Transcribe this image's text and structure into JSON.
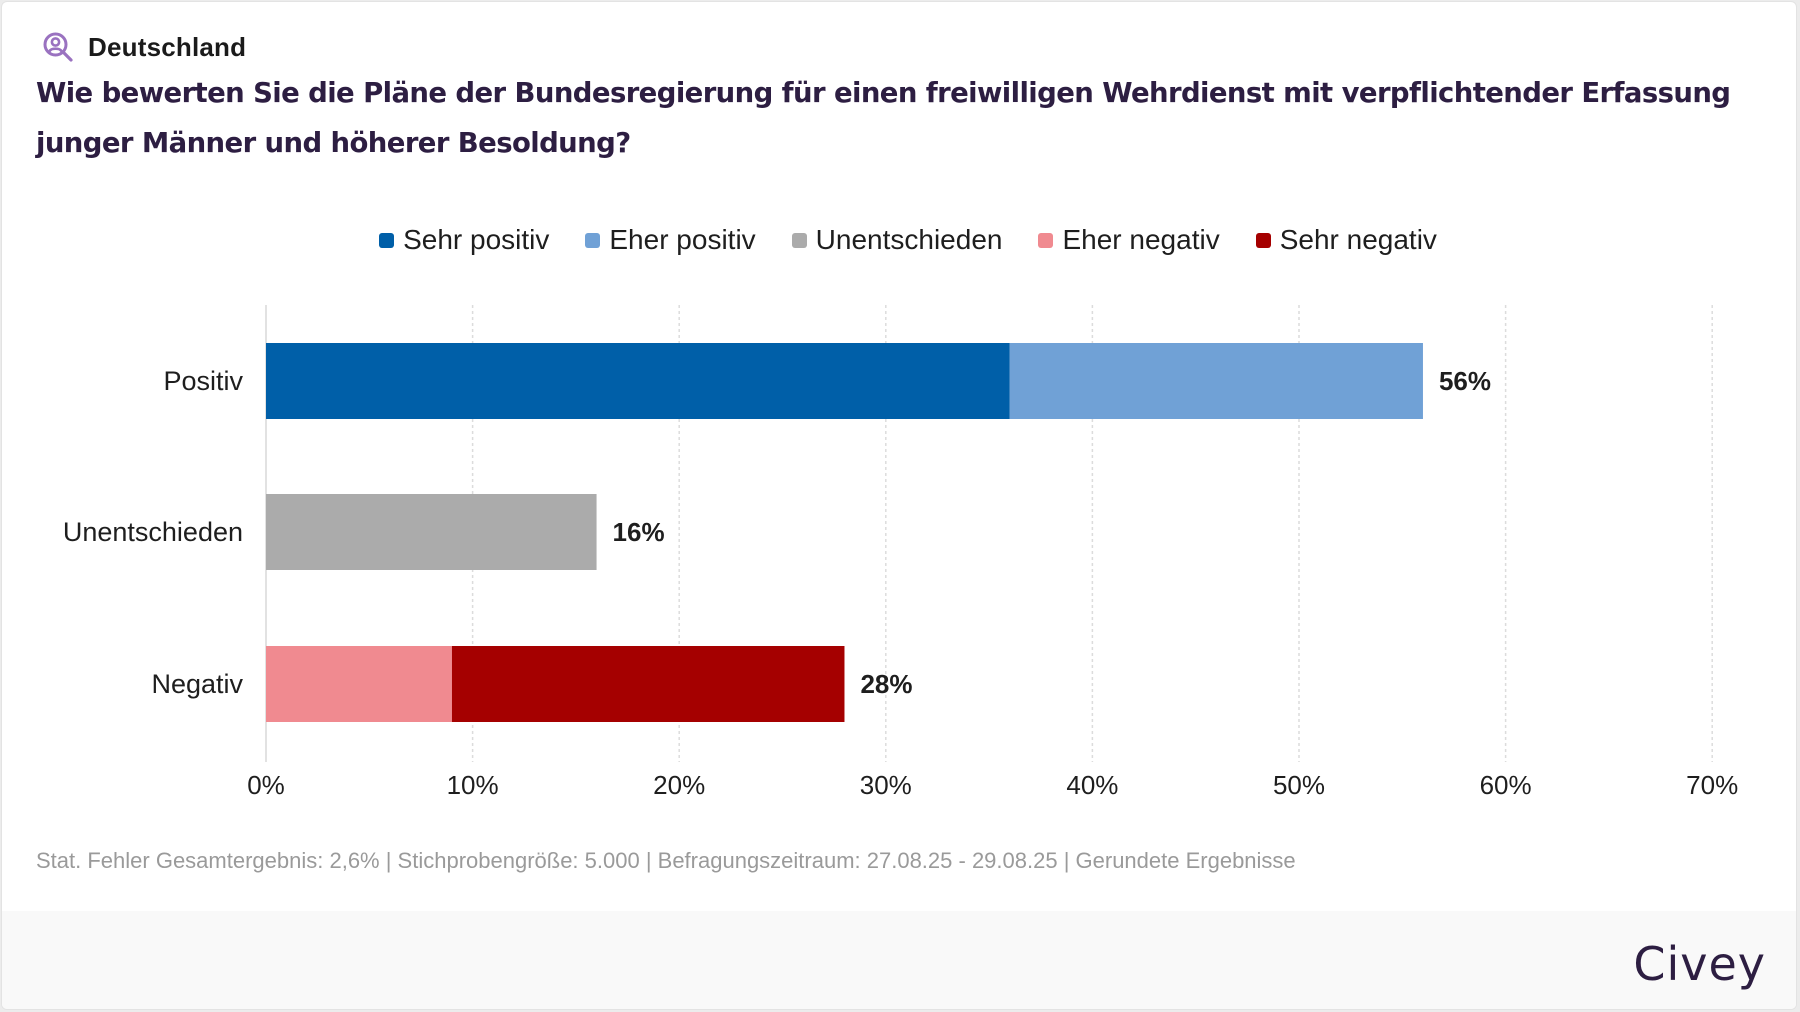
{
  "header": {
    "region_icon": "user-search-icon",
    "region": "Deutschland",
    "question": "Wie bewerten Sie die Pläne der Bundesregierung für einen freiwilligen Wehrdienst mit verpflichtender Erfassung junger Männer und höherer Besoldung?"
  },
  "colors": {
    "sehr_positiv": "#005fa8",
    "eher_positiv": "#70a1d6",
    "unentschieden": "#ababab",
    "eher_negativ": "#f08a90",
    "sehr_negativ": "#a50000",
    "title": "#2d1e42",
    "icon": "#9a72c0"
  },
  "chart_data": {
    "type": "bar",
    "orientation": "horizontal",
    "stacked": true,
    "title": "Wie bewerten Sie die Pläne der Bundesregierung für einen freiwilligen Wehrdienst mit verpflichtender Erfassung junger Männer und höherer Besoldung?",
    "categories": [
      "Positiv",
      "Unentschieden",
      "Negativ"
    ],
    "series": [
      {
        "name": "Sehr positiv",
        "color": "#005fa8",
        "values": [
          36,
          0,
          0
        ]
      },
      {
        "name": "Eher positiv",
        "color": "#70a1d6",
        "values": [
          20,
          0,
          0
        ]
      },
      {
        "name": "Unentschieden",
        "color": "#ababab",
        "values": [
          0,
          16,
          0
        ]
      },
      {
        "name": "Eher negativ",
        "color": "#f08a90",
        "values": [
          0,
          0,
          9
        ]
      },
      {
        "name": "Sehr negativ",
        "color": "#a50000",
        "values": [
          0,
          0,
          19
        ]
      }
    ],
    "totals": [
      56,
      16,
      28
    ],
    "total_labels": [
      "56%",
      "16%",
      "28%"
    ],
    "xlabel": "",
    "ylabel": "",
    "xlim": [
      0,
      70
    ],
    "xticks": [
      0,
      10,
      20,
      30,
      40,
      50,
      60,
      70
    ],
    "xtick_labels": [
      "0%",
      "10%",
      "20%",
      "30%",
      "40%",
      "50%",
      "60%",
      "70%"
    ],
    "grid": "vertical dotted",
    "legend_position": "top-center"
  },
  "legend": [
    {
      "label": "Sehr positiv",
      "color": "#005fa8"
    },
    {
      "label": "Eher positiv",
      "color": "#70a1d6"
    },
    {
      "label": "Unentschieden",
      "color": "#ababab"
    },
    {
      "label": "Eher negativ",
      "color": "#f08a90"
    },
    {
      "label": "Sehr negativ",
      "color": "#a50000"
    }
  ],
  "footnote": "Stat. Fehler Gesamtergebnis: 2,6% | Stichprobengröße: 5.000 | Befragungszeitraum: 27.08.25 - 29.08.25 | Gerundete Ergebnisse",
  "footer": {
    "brand": "Civey"
  }
}
